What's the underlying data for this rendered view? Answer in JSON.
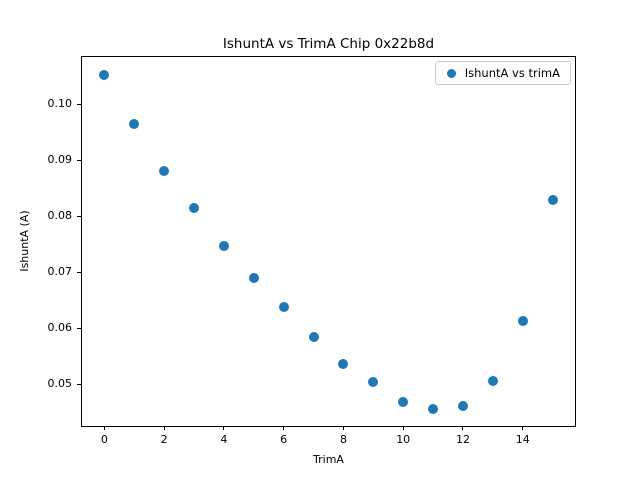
{
  "figure": {
    "title": "IshuntA vs TrimA Chip 0x22b8d",
    "xlabel": "TrimA",
    "ylabel": "IshuntA (A)",
    "legend": {
      "label": "IshuntA vs trimA"
    }
  },
  "colors": {
    "marker": "#1f77b4",
    "spine": "#000000",
    "legend_border": "#cccccc",
    "background": "#ffffff"
  },
  "chart_data": {
    "type": "scatter",
    "title": "IshuntA vs TrimA Chip 0x22b8d",
    "xlabel": "TrimA",
    "ylabel": "IshuntA (A)",
    "legend_entries": [
      "IshuntA vs trimA"
    ],
    "legend_position": "upper right",
    "grid": false,
    "xlim": [
      -0.75,
      15.75
    ],
    "ylim": [
      0.0425,
      0.1084
    ],
    "xticks": [
      0,
      2,
      4,
      6,
      8,
      10,
      12,
      14
    ],
    "yticks": [
      0.05,
      0.06,
      0.07,
      0.08,
      0.09,
      0.1
    ],
    "series": [
      {
        "name": "IshuntA vs trimA",
        "x": [
          0,
          1,
          2,
          3,
          4,
          5,
          6,
          7,
          8,
          9,
          10,
          11,
          12,
          13,
          14,
          15
        ],
        "y": [
          0.1051,
          0.0964,
          0.0881,
          0.0814,
          0.0747,
          0.069,
          0.0637,
          0.0584,
          0.0536,
          0.0503,
          0.0467,
          0.0456,
          0.0461,
          0.0506,
          0.0613,
          0.0829
        ]
      }
    ]
  }
}
